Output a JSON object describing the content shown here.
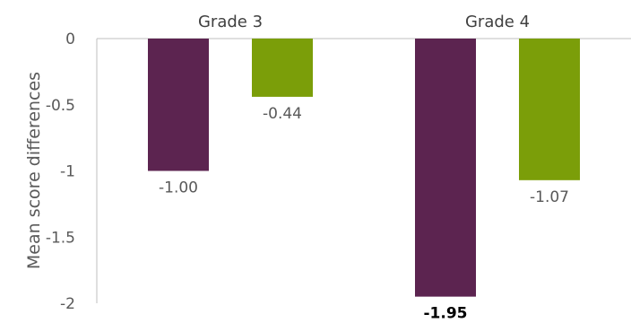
{
  "chart_data": {
    "type": "bar",
    "categories": [
      "Grade 3",
      "Grade 4"
    ],
    "ylabel": "Mean score differences",
    "ylim": [
      -2,
      0
    ],
    "yticks": [
      "0",
      "-0.5",
      "-1",
      "-1.5",
      "-2"
    ],
    "x_axis_position": "top",
    "grid": false,
    "legend": "none",
    "series": [
      {
        "color": "#5c2450",
        "values": [
          -1.0,
          -1.95
        ],
        "labels": [
          "-1.00",
          "-1.95"
        ],
        "bold": [
          false,
          true
        ]
      },
      {
        "color": "#7b9e09",
        "values": [
          -0.44,
          -1.07
        ],
        "labels": [
          "-0.44",
          "-1.07"
        ],
        "bold": [
          false,
          false
        ]
      }
    ]
  }
}
